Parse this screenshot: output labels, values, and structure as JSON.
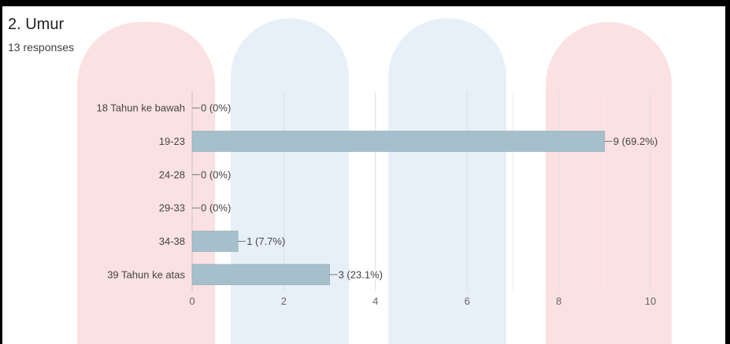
{
  "question": {
    "title": "2. Umur",
    "responses": "13 responses"
  },
  "colors": {
    "bar": "#a6bfcc",
    "bar_edge": "#8fa9b6",
    "grid": "#e6e6e6",
    "watermark_red": "#fbe1e1",
    "watermark_blue": "#e7f0f8"
  },
  "chart_data": {
    "type": "bar",
    "orientation": "horizontal",
    "categories": [
      "18 Tahun ke bawah",
      "19-23",
      "24-28",
      "29-33",
      "34-38",
      "39 Tahun ke atas"
    ],
    "values": [
      0,
      9,
      0,
      0,
      1,
      3
    ],
    "data_labels": [
      "0 (0%)",
      "9 (69.2%)",
      "0 (0%)",
      "0 (0%)",
      "1 (7.7%)",
      "3 (23.1%)"
    ],
    "xlim": [
      0,
      10
    ],
    "xticks": [
      "0",
      "2",
      "4",
      "6",
      "8",
      "10"
    ],
    "grid": true
  }
}
